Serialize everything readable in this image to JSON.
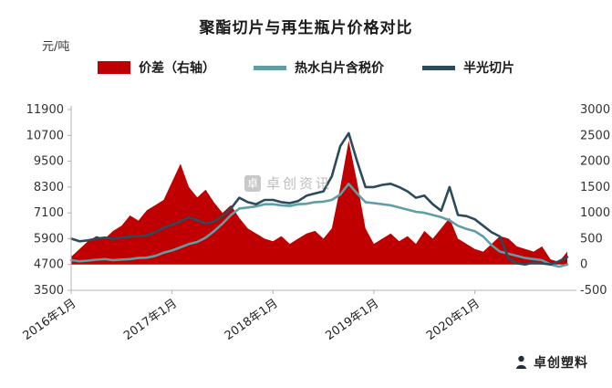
{
  "watermark": {
    "text": "卓创资讯",
    "logo_char": "卓"
  },
  "footer": {
    "brand_label": "卓创塑料"
  },
  "chart_data": {
    "type": "line",
    "title": "聚酯切片与再生瓶片价格对比",
    "unit_label": "元/吨",
    "legend_position": "top",
    "grid": false,
    "x": [
      "2016-01",
      "2016-02",
      "2016-03",
      "2016-04",
      "2016-05",
      "2016-06",
      "2016-07",
      "2016-08",
      "2016-09",
      "2016-10",
      "2016-11",
      "2016-12",
      "2017-01",
      "2017-02",
      "2017-03",
      "2017-04",
      "2017-05",
      "2017-06",
      "2017-07",
      "2017-08",
      "2017-09",
      "2017-10",
      "2017-11",
      "2017-12",
      "2018-01",
      "2018-02",
      "2018-03",
      "2018-04",
      "2018-05",
      "2018-06",
      "2018-07",
      "2018-08",
      "2018-09",
      "2018-10",
      "2018-11",
      "2018-12",
      "2019-01",
      "2019-02",
      "2019-03",
      "2019-04",
      "2019-05",
      "2019-06",
      "2019-07",
      "2019-08",
      "2019-09",
      "2019-10",
      "2019-11",
      "2019-12",
      "2020-01",
      "2020-02",
      "2020-03",
      "2020-04",
      "2020-05",
      "2020-06",
      "2020-07",
      "2020-08",
      "2020-09",
      "2020-10",
      "2020-11",
      "2020-12"
    ],
    "x_ticks": [
      {
        "i": 0,
        "label": "2016年1月"
      },
      {
        "i": 12,
        "label": "2017年1月"
      },
      {
        "i": 24,
        "label": "2018年1月"
      },
      {
        "i": 36,
        "label": "2019年1月"
      },
      {
        "i": 48,
        "label": "2020年1月"
      }
    ],
    "y_left": {
      "min": 3500,
      "max": 11900,
      "ticks": [
        3500,
        4700,
        5900,
        7100,
        8300,
        9500,
        10700,
        11900
      ]
    },
    "y_right": {
      "min": -500,
      "max": 3000,
      "ticks": [
        -500,
        0,
        500,
        1000,
        1500,
        2000,
        2500,
        3000
      ]
    },
    "series": [
      {
        "name": "价差（右轴）",
        "type": "area",
        "axis": "right",
        "color": "#C00000",
        "values": [
          150,
          300,
          450,
          550,
          500,
          650,
          750,
          950,
          850,
          1050,
          1150,
          1250,
          1600,
          1950,
          1500,
          1300,
          1450,
          1200,
          1000,
          1150,
          900,
          700,
          600,
          500,
          450,
          550,
          400,
          500,
          600,
          650,
          500,
          700,
          1500,
          2400,
          1600,
          700,
          400,
          500,
          600,
          450,
          550,
          400,
          650,
          500,
          700,
          900,
          500,
          400,
          300,
          250,
          400,
          550,
          500,
          350,
          300,
          250,
          350,
          100,
          50,
          250
        ]
      },
      {
        "name": "热水白片含税价",
        "type": "line",
        "axis": "left",
        "color": "#5F9EA4",
        "values": [
          4900,
          4850,
          4880,
          4920,
          4950,
          4900,
          4930,
          4950,
          5000,
          5020,
          5100,
          5250,
          5350,
          5500,
          5650,
          5750,
          5950,
          6250,
          6600,
          7000,
          7300,
          7350,
          7400,
          7500,
          7500,
          7450,
          7420,
          7500,
          7520,
          7600,
          7620,
          7700,
          7950,
          8450,
          8000,
          7600,
          7550,
          7500,
          7450,
          7350,
          7250,
          7150,
          7100,
          7000,
          6900,
          6750,
          6500,
          6350,
          6250,
          6000,
          5600,
          5300,
          5200,
          5100,
          5000,
          4950,
          4900,
          4700,
          4600,
          4700
        ]
      },
      {
        "name": "半光切片",
        "type": "line",
        "axis": "left",
        "color": "#2B4A5C",
        "values": [
          5900,
          5780,
          5820,
          5900,
          5950,
          5900,
          5950,
          6000,
          6020,
          6050,
          6200,
          6400,
          6550,
          6700,
          6900,
          6750,
          6600,
          6700,
          6950,
          7300,
          7800,
          7600,
          7500,
          7700,
          7700,
          7600,
          7550,
          7650,
          7900,
          8000,
          8100,
          8800,
          10200,
          10800,
          9500,
          8300,
          8300,
          8400,
          8450,
          8300,
          8100,
          7800,
          7900,
          7500,
          7200,
          8300,
          7000,
          6950,
          6800,
          6500,
          6200,
          6000,
          5000,
          4750,
          4700,
          4800,
          4750,
          4700,
          4850,
          5050
        ]
      }
    ]
  }
}
